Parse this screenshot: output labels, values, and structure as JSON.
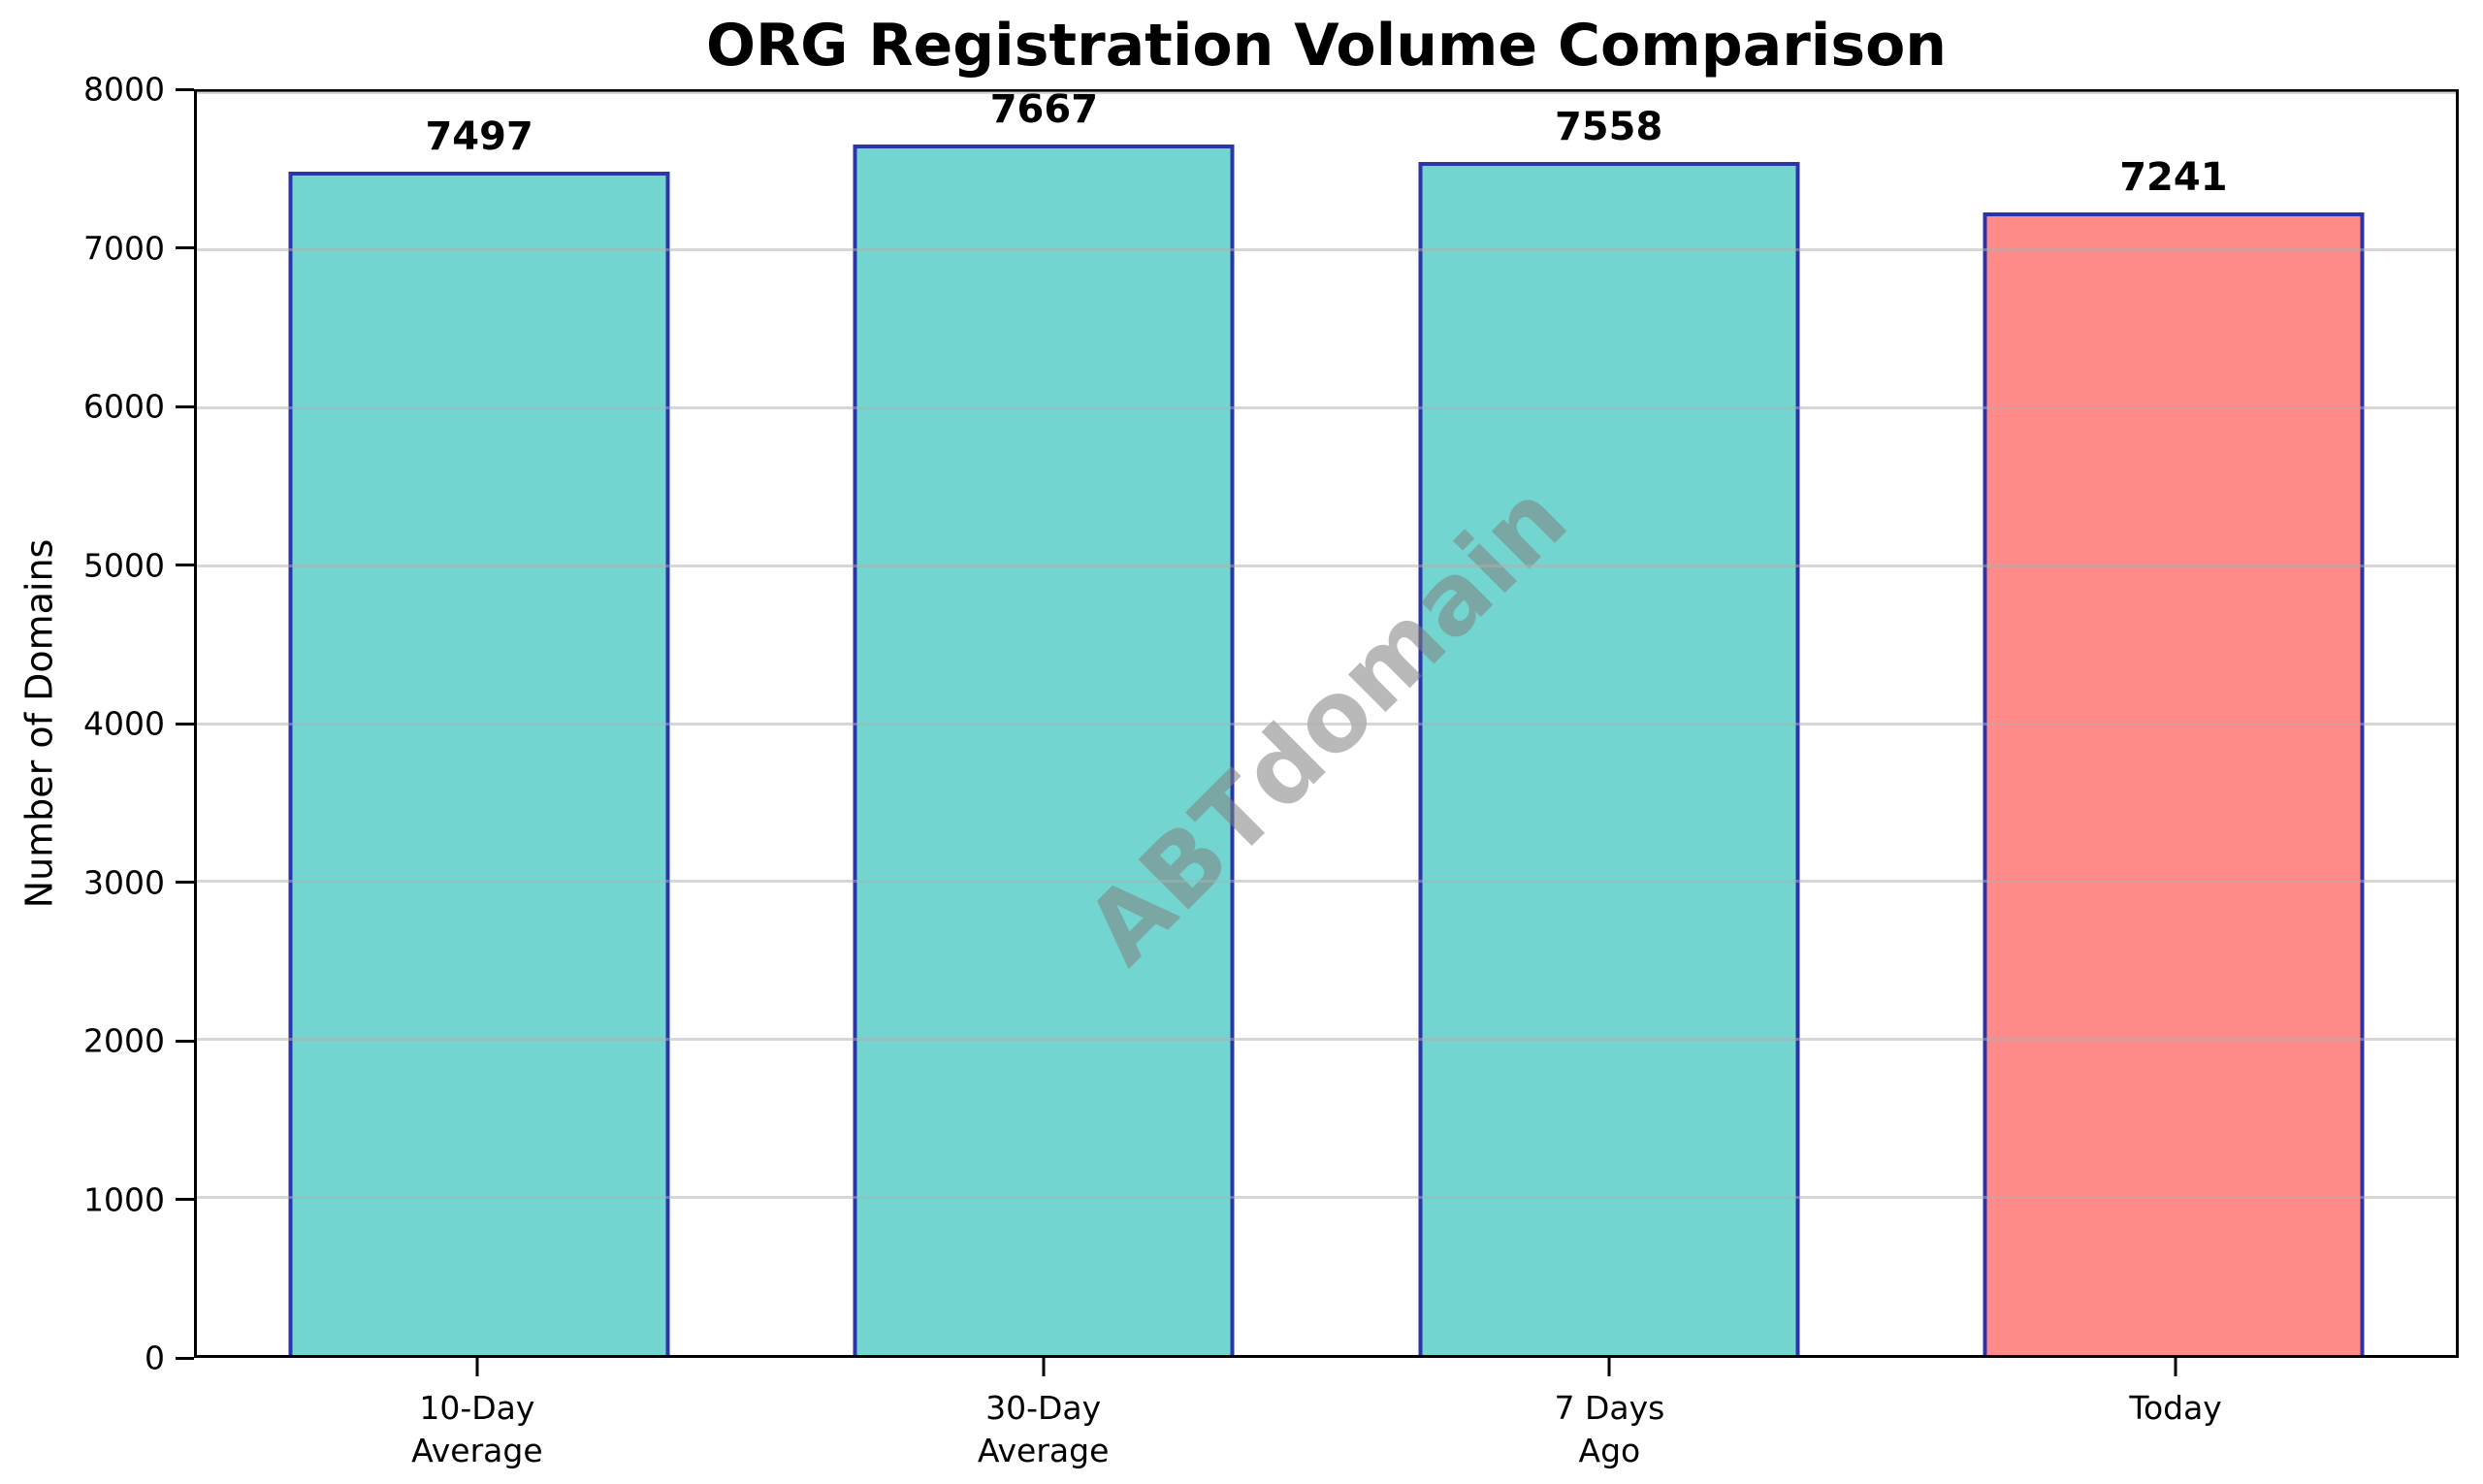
{
  "chart_data": {
    "type": "bar",
    "title": "ORG Registration Volume Comparison",
    "ylabel": "Number of Domains",
    "xlabel": "",
    "categories": [
      "10-Day\nAverage",
      "30-Day\nAverage",
      "7 Days\nAgo",
      "Today"
    ],
    "values": [
      7497,
      7667,
      7558,
      7241
    ],
    "value_labels": [
      "7497",
      "7667",
      "7558",
      "7241"
    ],
    "bar_colors": [
      "#73D5CF",
      "#73D5CF",
      "#73D5CF",
      "#FF8A8A"
    ],
    "bar_edge_color": "#2B35A8",
    "bar_width_fraction": 0.675,
    "ylim": [
      0,
      8000
    ],
    "yticks": [
      0,
      1000,
      2000,
      3000,
      4000,
      5000,
      6000,
      7000,
      8000
    ],
    "grid": {
      "axis": "y",
      "color": "#B0B0B0",
      "opacity": 0.5,
      "drawn_above_bars": true
    },
    "legend": "none",
    "background_color": "#FFFFFF",
    "axis_text_color": "#000000",
    "watermark": {
      "text": "ABTdomain",
      "color": "#808080",
      "opacity": 0.55,
      "rotation_deg": 45
    }
  }
}
